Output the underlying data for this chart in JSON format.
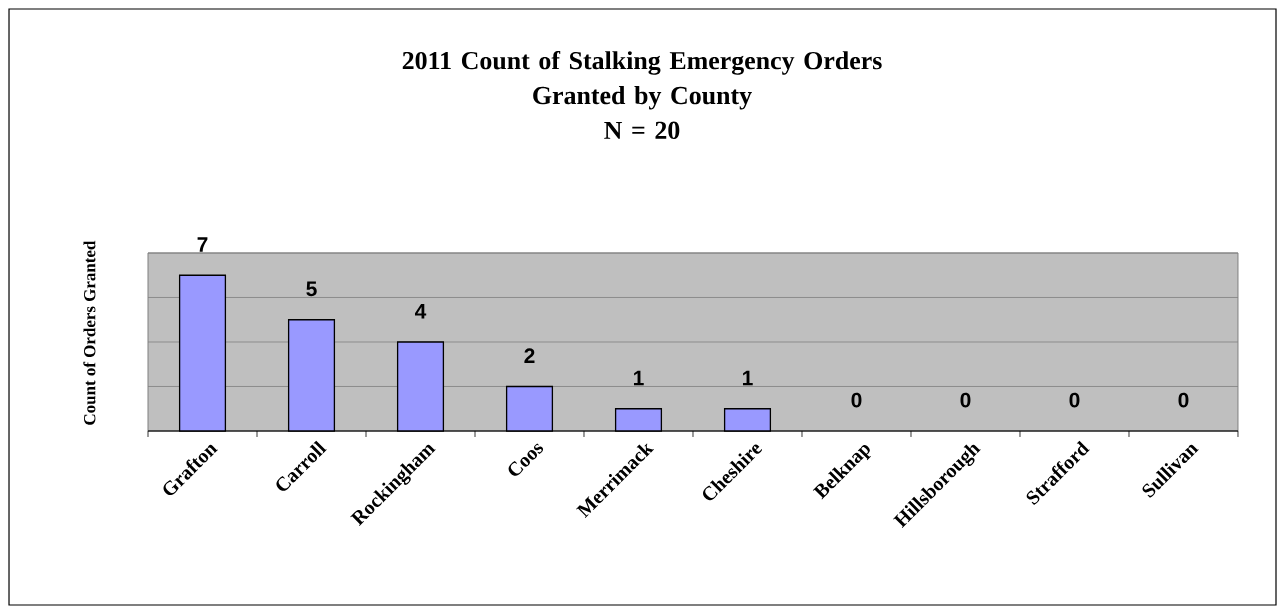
{
  "chart_data": {
    "type": "bar",
    "title": "2011 Count of Stalking Emergency Orders\nGranted by County\nN = 20",
    "ylabel": "Count of Orders Granted",
    "categories": [
      "Grafton",
      "Carroll",
      "Rockingham",
      "Coos",
      "Merrimack",
      "Cheshire",
      "Belknap",
      "Hillsborough",
      "Strafford",
      "Sullivan"
    ],
    "values": [
      7,
      5,
      4,
      2,
      1,
      1,
      0,
      0,
      0,
      0
    ],
    "color": "#9999ff",
    "data_labels": true,
    "grid": "y",
    "tick_labels": "x",
    "ylim": [
      0,
      8
    ],
    "yticks": [
      {
        "value": 0,
        "label": null
      },
      {
        "value": 2,
        "label": null
      },
      {
        "value": 4,
        "label": null
      },
      {
        "value": 6,
        "label": null
      },
      {
        "value": 8,
        "label": null
      }
    ]
  }
}
